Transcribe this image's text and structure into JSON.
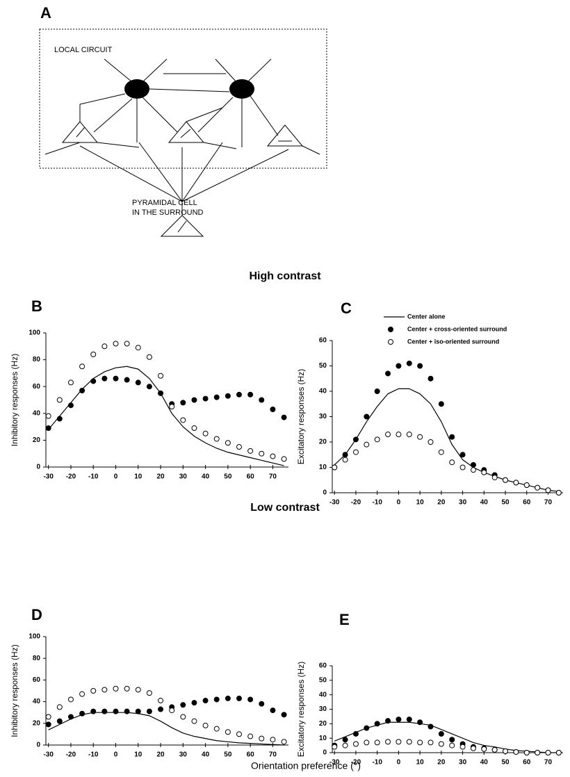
{
  "figure": {
    "panel_a": "A",
    "diagram": {
      "local_circuit": "LOCAL CIRCUIT",
      "pyramidal_line1": "PYRAMIDAL CELL",
      "pyramidal_line2": "IN THE SURROUND"
    },
    "high_contrast": "High contrast",
    "low_contrast": "Low contrast",
    "x_axis_label": "Orientation preference (°)"
  },
  "chart_data": [
    {
      "type": "line",
      "panel": "B",
      "y_label": "Inhibitory responses (Hz)",
      "x": [
        -30,
        -25,
        -20,
        -15,
        -10,
        -5,
        0,
        5,
        10,
        15,
        20,
        25,
        30,
        35,
        40,
        45,
        50,
        55,
        60,
        65,
        70,
        75
      ],
      "xlim": [
        -33,
        77
      ],
      "ylim": [
        0,
        100
      ],
      "xticks": [
        -30,
        -20,
        -10,
        0,
        10,
        20,
        30,
        40,
        50,
        60,
        70
      ],
      "yticks": [
        0,
        20,
        40,
        60,
        80,
        100
      ],
      "series": [
        {
          "marker": "line",
          "color": "#000000",
          "values": [
            28,
            38,
            48,
            58,
            66,
            71,
            74,
            75,
            73,
            66,
            55,
            40,
            30,
            23,
            18,
            14,
            11,
            9,
            7,
            5,
            3,
            1
          ]
        },
        {
          "marker": "filled",
          "color": "#000000",
          "values": [
            29,
            36,
            46,
            57,
            64,
            66,
            66,
            65,
            63,
            60,
            55,
            47,
            48,
            50,
            51,
            52,
            53,
            54,
            54,
            50,
            43,
            37
          ]
        },
        {
          "marker": "open",
          "color": "#000000",
          "values": [
            38,
            50,
            63,
            75,
            84,
            90,
            92,
            92,
            89,
            82,
            68,
            45,
            35,
            29,
            25,
            21,
            18,
            15,
            12,
            10,
            8,
            6
          ]
        }
      ]
    },
    {
      "type": "line",
      "panel": "C",
      "y_label": "Excitatory responses (Hz)",
      "legend": "upper right",
      "x": [
        -30,
        -25,
        -20,
        -15,
        -10,
        -5,
        0,
        5,
        10,
        15,
        20,
        25,
        30,
        35,
        40,
        45,
        50,
        55,
        60,
        65,
        70,
        75
      ],
      "xlim": [
        -33,
        77
      ],
      "ylim": [
        0,
        60
      ],
      "xticks": [
        -30,
        -20,
        -10,
        0,
        10,
        20,
        30,
        40,
        50,
        60,
        70
      ],
      "yticks": [
        0,
        10,
        20,
        30,
        40,
        50,
        60
      ],
      "series": [
        {
          "name": "Center alone",
          "marker": "line",
          "color": "#000000",
          "values": [
            11,
            15,
            21,
            28,
            34,
            39,
            41,
            41,
            39,
            35,
            28,
            19,
            13,
            10,
            8,
            6.5,
            5,
            4,
            3,
            2,
            1,
            0.5
          ]
        },
        {
          "name": "Center + cross-oriented surround",
          "marker": "filled",
          "color": "#000000",
          "values": [
            10,
            15,
            21,
            30,
            40,
            47,
            50,
            51,
            50,
            45,
            35,
            22,
            15,
            11,
            9,
            7,
            5,
            4,
            3,
            2,
            1,
            0
          ]
        },
        {
          "name": "Center + iso-oriented surround",
          "marker": "open",
          "color": "#000000",
          "values": [
            10,
            13,
            16,
            19,
            21,
            23,
            23,
            23,
            22,
            20,
            16,
            12,
            10,
            9,
            8,
            6,
            5,
            4,
            3,
            2,
            1,
            0
          ]
        }
      ]
    },
    {
      "type": "line",
      "panel": "D",
      "y_label": "Inhibitory responses (Hz)",
      "x": [
        -30,
        -25,
        -20,
        -15,
        -10,
        -5,
        0,
        5,
        10,
        15,
        20,
        25,
        30,
        35,
        40,
        45,
        50,
        55,
        60,
        65,
        70,
        75
      ],
      "xlim": [
        -33,
        77
      ],
      "ylim": [
        0,
        100
      ],
      "xticks": [
        -30,
        -20,
        -10,
        0,
        10,
        20,
        30,
        40,
        50,
        60,
        70
      ],
      "yticks": [
        0,
        20,
        40,
        60,
        80,
        100
      ],
      "series": [
        {
          "marker": "line",
          "color": "#000000",
          "values": [
            14,
            19,
            24,
            28,
            30,
            30,
            30,
            30,
            29,
            27,
            22,
            16,
            11,
            8,
            6,
            4,
            3,
            2,
            1.5,
            1,
            0.5,
            0
          ]
        },
        {
          "marker": "filled",
          "color": "#000000",
          "values": [
            19,
            22,
            26,
            29,
            31,
            31,
            31,
            31,
            31,
            31,
            33,
            35,
            37,
            39,
            41,
            42,
            43,
            43,
            42,
            38,
            32,
            28
          ]
        },
        {
          "marker": "open",
          "color": "#000000",
          "values": [
            26,
            35,
            42,
            47,
            50,
            51,
            52,
            52,
            51,
            48,
            41,
            32,
            26,
            22,
            18,
            15,
            12,
            10,
            8,
            6,
            5,
            3
          ]
        }
      ]
    },
    {
      "type": "line",
      "panel": "E",
      "y_label": "Excitatory responses (Hz)",
      "x": [
        -30,
        -25,
        -20,
        -15,
        -10,
        -5,
        0,
        5,
        10,
        15,
        20,
        25,
        30,
        35,
        40,
        45,
        50,
        55,
        60,
        65,
        70,
        75
      ],
      "xlim": [
        -33,
        77
      ],
      "ylim": [
        0,
        60
      ],
      "xticks": [
        -30,
        -20,
        -10,
        0,
        10,
        20,
        30,
        40,
        50,
        60,
        70
      ],
      "yticks": [
        0,
        10,
        20,
        30,
        40,
        50,
        60
      ],
      "series": [
        {
          "marker": "line",
          "color": "#000000",
          "values": [
            8,
            11,
            14,
            17,
            19,
            21,
            21,
            21,
            20,
            19,
            16,
            13,
            10,
            7,
            5,
            4,
            2.5,
            1.5,
            1,
            0.5,
            0,
            0
          ]
        },
        {
          "marker": "filled",
          "color": "#000000",
          "values": [
            5,
            9,
            13,
            17,
            20,
            22,
            23,
            23,
            21,
            18,
            13,
            9,
            6,
            4,
            3,
            2,
            1,
            0.5,
            0,
            0,
            0,
            0
          ]
        },
        {
          "marker": "open",
          "color": "#000000",
          "values": [
            4,
            5,
            6,
            7,
            7,
            7.5,
            7.5,
            7.5,
            7,
            7,
            6,
            5,
            4,
            3,
            2.5,
            2,
            1,
            0.5,
            0,
            0,
            0,
            0
          ]
        }
      ]
    }
  ]
}
